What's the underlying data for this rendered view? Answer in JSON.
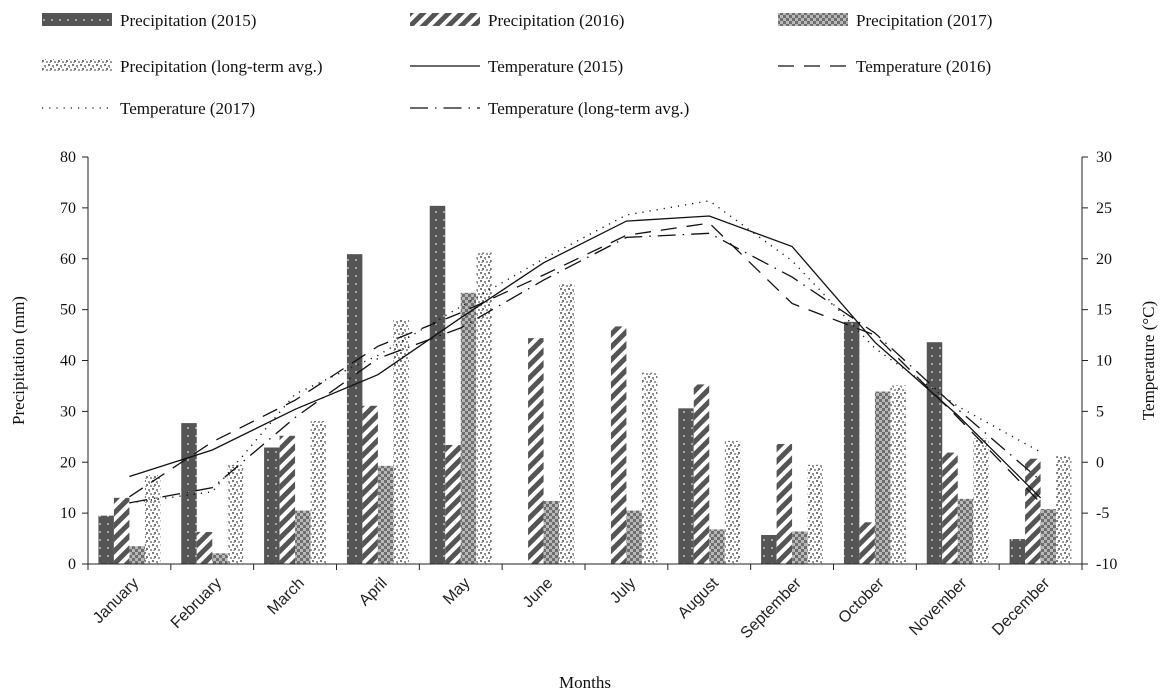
{
  "chart_data": {
    "type": "bar",
    "title": "",
    "xlabel": "Months",
    "ylabel": "Precipitation (mm)",
    "y2label": "Temperature (°C)",
    "ylim": [
      0,
      80
    ],
    "yticks": [
      0,
      10,
      20,
      30,
      40,
      50,
      60,
      70,
      80
    ],
    "y2lim": [
      -10,
      30
    ],
    "y2ticks": [
      -10,
      -5,
      0,
      5,
      10,
      15,
      20,
      25,
      30
    ],
    "legend_position": "top",
    "grid": false,
    "categories": [
      "January",
      "February",
      "March",
      "April",
      "May",
      "June",
      "July",
      "August",
      "September",
      "October",
      "November",
      "December"
    ],
    "series": [
      {
        "name": "Precipitation (2015)",
        "type": "bar",
        "axis": "left",
        "pattern": "dots-dark",
        "values": [
          9.5,
          27.7,
          22.9,
          60.9,
          70.4,
          0.1,
          0.1,
          30.6,
          5.7,
          47.6,
          43.6,
          4.9
        ]
      },
      {
        "name": "Precipitation (2016)",
        "type": "bar",
        "axis": "left",
        "pattern": "diagonal-stripes",
        "values": [
          13.0,
          6.3,
          25.2,
          31.1,
          23.4,
          44.4,
          46.7,
          35.3,
          23.6,
          8.2,
          21.9,
          20.7
        ]
      },
      {
        "name": "Precipitation (2017)",
        "type": "bar",
        "axis": "left",
        "pattern": "checker",
        "values": [
          3.5,
          2.1,
          10.5,
          19.3,
          53.3,
          12.4,
          10.5,
          6.8,
          6.4,
          33.9,
          12.8,
          10.8
        ]
      },
      {
        "name": "Precipitation (long-term avg.)",
        "type": "bar",
        "axis": "left",
        "pattern": "speckle",
        "values": [
          17.5,
          19.5,
          28.1,
          48.0,
          61.2,
          55.0,
          37.6,
          24.2,
          19.5,
          35.1,
          24.7,
          21.2
        ]
      },
      {
        "name": "Temperature (2015)",
        "type": "line",
        "axis": "right",
        "dash": "solid",
        "values": [
          -1.4,
          1.2,
          5.2,
          8.6,
          14.2,
          19.6,
          23.7,
          24.2,
          21.2,
          11.8,
          4.6,
          -3.5
        ]
      },
      {
        "name": "Temperature (2016)",
        "type": "line",
        "axis": "right",
        "dash": "long-dash",
        "values": [
          -3.4,
          2.0,
          6.1,
          11.4,
          14.7,
          18.4,
          22.3,
          23.5,
          15.6,
          12.5,
          4.4,
          -4.0
        ]
      },
      {
        "name": "Temperature (2017)",
        "type": "line",
        "axis": "right",
        "dash": "dotted",
        "values": [
          -4.0,
          -2.9,
          6.7,
          10.5,
          15.3,
          20.0,
          24.3,
          25.7,
          19.8,
          11.2,
          5.5,
          1.0
        ]
      },
      {
        "name": "Temperature (long-term avg.)",
        "type": "line",
        "axis": "right",
        "dash": "long-dash-dot",
        "values": [
          -4.0,
          -2.5,
          4.4,
          10.2,
          13.2,
          17.9,
          22.1,
          22.5,
          18.2,
          12.7,
          5.2,
          -1.8
        ]
      }
    ]
  }
}
